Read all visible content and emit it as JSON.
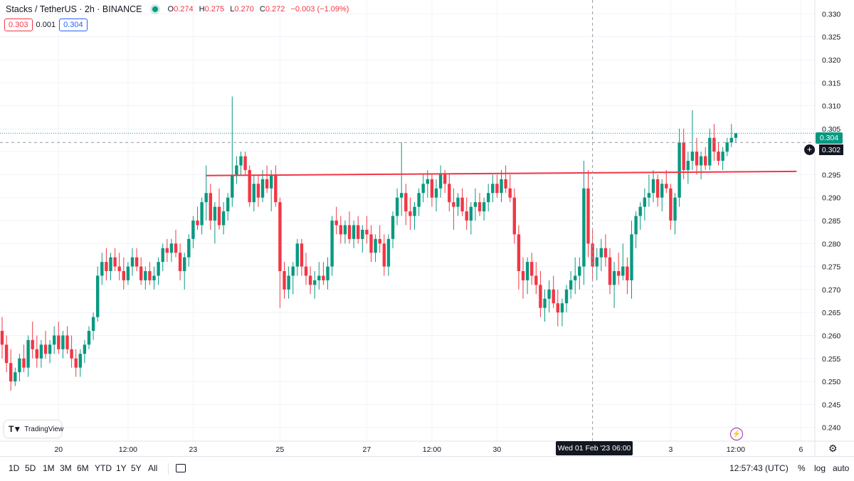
{
  "header": {
    "symbol": "Stacks / TetherUS · 2h · BINANCE",
    "o_label": "O",
    "o_value": "0.274",
    "h_label": "H",
    "h_value": "0.275",
    "l_label": "L",
    "l_value": "0.270",
    "c_label": "C",
    "c_value": "0.272",
    "change": "−0.003 (−1.09%)",
    "sell_price": "0.303",
    "spread": "0.001",
    "buy_price": "0.304"
  },
  "logo_text": "TradingView",
  "crosshair_date": "Wed 01 Feb '23   06:00",
  "price_labels": {
    "last": "0.304",
    "crosshair": "0.302",
    "hidden_suffix": "7"
  },
  "timeframes": [
    "1D",
    "5D",
    "1M",
    "3M",
    "6M",
    "YTD",
    "1Y",
    "5Y",
    "All"
  ],
  "clock": "12:57:43 (UTC)",
  "scale_buttons": {
    "percent": "%",
    "log": "log",
    "auto": "auto"
  },
  "colors": {
    "up": "#089981",
    "down": "#f23645",
    "trendline": "#f23645",
    "grid": "#f0f3fa"
  },
  "chart_data": {
    "type": "candlestick",
    "ylim": [
      0.237,
      0.333
    ],
    "y_ticks": [
      "0.240",
      "0.245",
      "0.250",
      "0.255",
      "0.260",
      "0.265",
      "0.270",
      "0.275",
      "0.280",
      "0.285",
      "0.290",
      "0.295",
      "0.300",
      "0.305",
      "0.310",
      "0.315",
      "0.320",
      "0.325",
      "0.330"
    ],
    "x_ticks": [
      {
        "label": "20",
        "i": 13
      },
      {
        "label": "12:00",
        "i": 29
      },
      {
        "label": "23",
        "i": 44
      },
      {
        "label": "25",
        "i": 64
      },
      {
        "label": "27",
        "i": 84
      },
      {
        "label": "12:00",
        "i": 99
      },
      {
        "label": "30",
        "i": 114
      },
      {
        "label": "3",
        "i": 154
      },
      {
        "label": "12:00",
        "i": 169
      },
      {
        "label": "6",
        "i": 184
      }
    ],
    "trendline": {
      "from": {
        "i": 47,
        "price": 0.2948
      },
      "to": {
        "i": 183,
        "price": 0.2957
      }
    },
    "last_price": 0.304,
    "crosshair": {
      "i": 136,
      "price": 0.302
    },
    "candles": [
      [
        0.261,
        0.264,
        0.255,
        0.258
      ],
      [
        0.258,
        0.26,
        0.252,
        0.254
      ],
      [
        0.254,
        0.257,
        0.248,
        0.25
      ],
      [
        0.25,
        0.253,
        0.249,
        0.252
      ],
      [
        0.252,
        0.256,
        0.25,
        0.255
      ],
      [
        0.255,
        0.258,
        0.252,
        0.253
      ],
      [
        0.253,
        0.26,
        0.251,
        0.259
      ],
      [
        0.259,
        0.263,
        0.255,
        0.257
      ],
      [
        0.257,
        0.26,
        0.253,
        0.255
      ],
      [
        0.255,
        0.259,
        0.253,
        0.258
      ],
      [
        0.258,
        0.261,
        0.255,
        0.256
      ],
      [
        0.256,
        0.259,
        0.254,
        0.258
      ],
      [
        0.258,
        0.262,
        0.256,
        0.26
      ],
      [
        0.26,
        0.263,
        0.256,
        0.257
      ],
      [
        0.257,
        0.261,
        0.255,
        0.26
      ],
      [
        0.26,
        0.262,
        0.256,
        0.257
      ],
      [
        0.257,
        0.26,
        0.253,
        0.255
      ],
      [
        0.255,
        0.257,
        0.251,
        0.253
      ],
      [
        0.253,
        0.257,
        0.251,
        0.256
      ],
      [
        0.256,
        0.259,
        0.254,
        0.258
      ],
      [
        0.258,
        0.262,
        0.257,
        0.261
      ],
      [
        0.261,
        0.265,
        0.259,
        0.264
      ],
      [
        0.264,
        0.275,
        0.263,
        0.273
      ],
      [
        0.273,
        0.278,
        0.271,
        0.276
      ],
      [
        0.276,
        0.279,
        0.272,
        0.274
      ],
      [
        0.274,
        0.278,
        0.272,
        0.277
      ],
      [
        0.277,
        0.279,
        0.274,
        0.275
      ],
      [
        0.275,
        0.278,
        0.272,
        0.274
      ],
      [
        0.274,
        0.277,
        0.27,
        0.272
      ],
      [
        0.272,
        0.276,
        0.271,
        0.275
      ],
      [
        0.275,
        0.279,
        0.273,
        0.277
      ],
      [
        0.277,
        0.279,
        0.274,
        0.275
      ],
      [
        0.275,
        0.277,
        0.271,
        0.272
      ],
      [
        0.272,
        0.275,
        0.27,
        0.274
      ],
      [
        0.274,
        0.276,
        0.271,
        0.272
      ],
      [
        0.272,
        0.275,
        0.27,
        0.273
      ],
      [
        0.273,
        0.277,
        0.271,
        0.276
      ],
      [
        0.276,
        0.28,
        0.274,
        0.279
      ],
      [
        0.279,
        0.281,
        0.276,
        0.278
      ],
      [
        0.278,
        0.281,
        0.276,
        0.28
      ],
      [
        0.28,
        0.283,
        0.277,
        0.278
      ],
      [
        0.278,
        0.28,
        0.272,
        0.274
      ],
      [
        0.274,
        0.278,
        0.27,
        0.277
      ],
      [
        0.277,
        0.282,
        0.275,
        0.281
      ],
      [
        0.281,
        0.286,
        0.279,
        0.285
      ],
      [
        0.285,
        0.288,
        0.283,
        0.284
      ],
      [
        0.284,
        0.29,
        0.282,
        0.289
      ],
      [
        0.289,
        0.297,
        0.285,
        0.291
      ],
      [
        0.291,
        0.293,
        0.283,
        0.285
      ],
      [
        0.285,
        0.289,
        0.28,
        0.288
      ],
      [
        0.288,
        0.292,
        0.283,
        0.284
      ],
      [
        0.284,
        0.289,
        0.282,
        0.287
      ],
      [
        0.287,
        0.291,
        0.285,
        0.29
      ],
      [
        0.29,
        0.312,
        0.288,
        0.295
      ],
      [
        0.295,
        0.299,
        0.293,
        0.297
      ],
      [
        0.297,
        0.3,
        0.295,
        0.299
      ],
      [
        0.299,
        0.3,
        0.295,
        0.296
      ],
      [
        0.296,
        0.297,
        0.288,
        0.289
      ],
      [
        0.289,
        0.295,
        0.287,
        0.293
      ],
      [
        0.293,
        0.295,
        0.288,
        0.29
      ],
      [
        0.29,
        0.296,
        0.289,
        0.294
      ],
      [
        0.294,
        0.297,
        0.291,
        0.292
      ],
      [
        0.292,
        0.296,
        0.287,
        0.295
      ],
      [
        0.295,
        0.297,
        0.288,
        0.289
      ],
      [
        0.289,
        0.29,
        0.266,
        0.274
      ],
      [
        0.274,
        0.276,
        0.268,
        0.27
      ],
      [
        0.27,
        0.275,
        0.268,
        0.273
      ],
      [
        0.273,
        0.276,
        0.269,
        0.275
      ],
      [
        0.275,
        0.281,
        0.273,
        0.28
      ],
      [
        0.28,
        0.281,
        0.273,
        0.275
      ],
      [
        0.275,
        0.278,
        0.271,
        0.273
      ],
      [
        0.273,
        0.275,
        0.269,
        0.271
      ],
      [
        0.271,
        0.274,
        0.268,
        0.272
      ],
      [
        0.272,
        0.276,
        0.27,
        0.273
      ],
      [
        0.273,
        0.276,
        0.271,
        0.272
      ],
      [
        0.272,
        0.277,
        0.27,
        0.275
      ],
      [
        0.275,
        0.286,
        0.273,
        0.285
      ],
      [
        0.285,
        0.288,
        0.282,
        0.284
      ],
      [
        0.284,
        0.286,
        0.28,
        0.282
      ],
      [
        0.282,
        0.285,
        0.28,
        0.284
      ],
      [
        0.284,
        0.287,
        0.28,
        0.281
      ],
      [
        0.281,
        0.285,
        0.279,
        0.284
      ],
      [
        0.284,
        0.286,
        0.28,
        0.281
      ],
      [
        0.281,
        0.284,
        0.278,
        0.283
      ],
      [
        0.283,
        0.286,
        0.28,
        0.282
      ],
      [
        0.282,
        0.284,
        0.276,
        0.278
      ],
      [
        0.278,
        0.282,
        0.276,
        0.281
      ],
      [
        0.281,
        0.284,
        0.278,
        0.28
      ],
      [
        0.28,
        0.282,
        0.273,
        0.275
      ],
      [
        0.275,
        0.282,
        0.273,
        0.281
      ],
      [
        0.281,
        0.287,
        0.279,
        0.286
      ],
      [
        0.286,
        0.292,
        0.284,
        0.29
      ],
      [
        0.29,
        0.302,
        0.286,
        0.291
      ],
      [
        0.291,
        0.293,
        0.284,
        0.287
      ],
      [
        0.287,
        0.29,
        0.283,
        0.286
      ],
      [
        0.286,
        0.289,
        0.283,
        0.288
      ],
      [
        0.288,
        0.292,
        0.286,
        0.291
      ],
      [
        0.291,
        0.295,
        0.289,
        0.293
      ],
      [
        0.293,
        0.296,
        0.29,
        0.294
      ],
      [
        0.294,
        0.295,
        0.288,
        0.29
      ],
      [
        0.29,
        0.294,
        0.287,
        0.292
      ],
      [
        0.292,
        0.297,
        0.29,
        0.295
      ],
      [
        0.295,
        0.296,
        0.291,
        0.293
      ],
      [
        0.293,
        0.295,
        0.287,
        0.289
      ],
      [
        0.289,
        0.292,
        0.283,
        0.288
      ],
      [
        0.288,
        0.291,
        0.286,
        0.29
      ],
      [
        0.29,
        0.292,
        0.286,
        0.287
      ],
      [
        0.287,
        0.29,
        0.283,
        0.285
      ],
      [
        0.285,
        0.289,
        0.282,
        0.288
      ],
      [
        0.288,
        0.292,
        0.285,
        0.289
      ],
      [
        0.289,
        0.291,
        0.286,
        0.287
      ],
      [
        0.287,
        0.29,
        0.285,
        0.289
      ],
      [
        0.289,
        0.293,
        0.287,
        0.291
      ],
      [
        0.291,
        0.295,
        0.289,
        0.293
      ],
      [
        0.293,
        0.295,
        0.29,
        0.291
      ],
      [
        0.291,
        0.296,
        0.289,
        0.294
      ],
      [
        0.294,
        0.297,
        0.291,
        0.292
      ],
      [
        0.292,
        0.295,
        0.289,
        0.29
      ],
      [
        0.29,
        0.292,
        0.28,
        0.282
      ],
      [
        0.282,
        0.284,
        0.27,
        0.274
      ],
      [
        0.274,
        0.277,
        0.268,
        0.272
      ],
      [
        0.272,
        0.277,
        0.269,
        0.276
      ],
      [
        0.276,
        0.278,
        0.271,
        0.273
      ],
      [
        0.273,
        0.276,
        0.269,
        0.271
      ],
      [
        0.271,
        0.274,
        0.264,
        0.266
      ],
      [
        0.266,
        0.27,
        0.263,
        0.268
      ],
      [
        0.268,
        0.272,
        0.265,
        0.27
      ],
      [
        0.27,
        0.273,
        0.266,
        0.267
      ],
      [
        0.267,
        0.27,
        0.262,
        0.265
      ],
      [
        0.265,
        0.268,
        0.262,
        0.267
      ],
      [
        0.267,
        0.271,
        0.265,
        0.27
      ],
      [
        0.27,
        0.274,
        0.268,
        0.272
      ],
      [
        0.272,
        0.277,
        0.269,
        0.273
      ],
      [
        0.273,
        0.277,
        0.27,
        0.275
      ],
      [
        0.275,
        0.298,
        0.271,
        0.292
      ],
      [
        0.292,
        0.296,
        0.277,
        0.28
      ],
      [
        0.28,
        0.283,
        0.272,
        0.275
      ],
      [
        0.275,
        0.279,
        0.272,
        0.277
      ],
      [
        0.277,
        0.281,
        0.274,
        0.279
      ],
      [
        0.279,
        0.282,
        0.275,
        0.277
      ],
      [
        0.277,
        0.279,
        0.269,
        0.271
      ],
      [
        0.271,
        0.276,
        0.266,
        0.274
      ],
      [
        0.274,
        0.278,
        0.271,
        0.273
      ],
      [
        0.273,
        0.28,
        0.272,
        0.275
      ],
      [
        0.275,
        0.277,
        0.269,
        0.272
      ],
      [
        0.272,
        0.285,
        0.268,
        0.282
      ],
      [
        0.282,
        0.287,
        0.279,
        0.286
      ],
      [
        0.286,
        0.289,
        0.283,
        0.288
      ],
      [
        0.288,
        0.292,
        0.285,
        0.29
      ],
      [
        0.29,
        0.295,
        0.288,
        0.291
      ],
      [
        0.291,
        0.296,
        0.289,
        0.294
      ],
      [
        0.294,
        0.295,
        0.288,
        0.29
      ],
      [
        0.29,
        0.294,
        0.287,
        0.293
      ],
      [
        0.293,
        0.296,
        0.291,
        0.292
      ],
      [
        0.292,
        0.293,
        0.283,
        0.285
      ],
      [
        0.285,
        0.291,
        0.282,
        0.29
      ],
      [
        0.29,
        0.305,
        0.288,
        0.302
      ],
      [
        0.302,
        0.305,
        0.294,
        0.296
      ],
      [
        0.296,
        0.3,
        0.293,
        0.298
      ],
      [
        0.298,
        0.309,
        0.296,
        0.3
      ],
      [
        0.3,
        0.303,
        0.295,
        0.297
      ],
      [
        0.297,
        0.3,
        0.294,
        0.299
      ],
      [
        0.299,
        0.301,
        0.296,
        0.297
      ],
      [
        0.297,
        0.305,
        0.296,
        0.303
      ],
      [
        0.303,
        0.306,
        0.298,
        0.3
      ],
      [
        0.3,
        0.302,
        0.297,
        0.298
      ],
      [
        0.298,
        0.301,
        0.296,
        0.3
      ],
      [
        0.3,
        0.303,
        0.299,
        0.302
      ],
      [
        0.302,
        0.306,
        0.301,
        0.303
      ],
      [
        0.303,
        0.304,
        0.302,
        0.304
      ]
    ]
  }
}
